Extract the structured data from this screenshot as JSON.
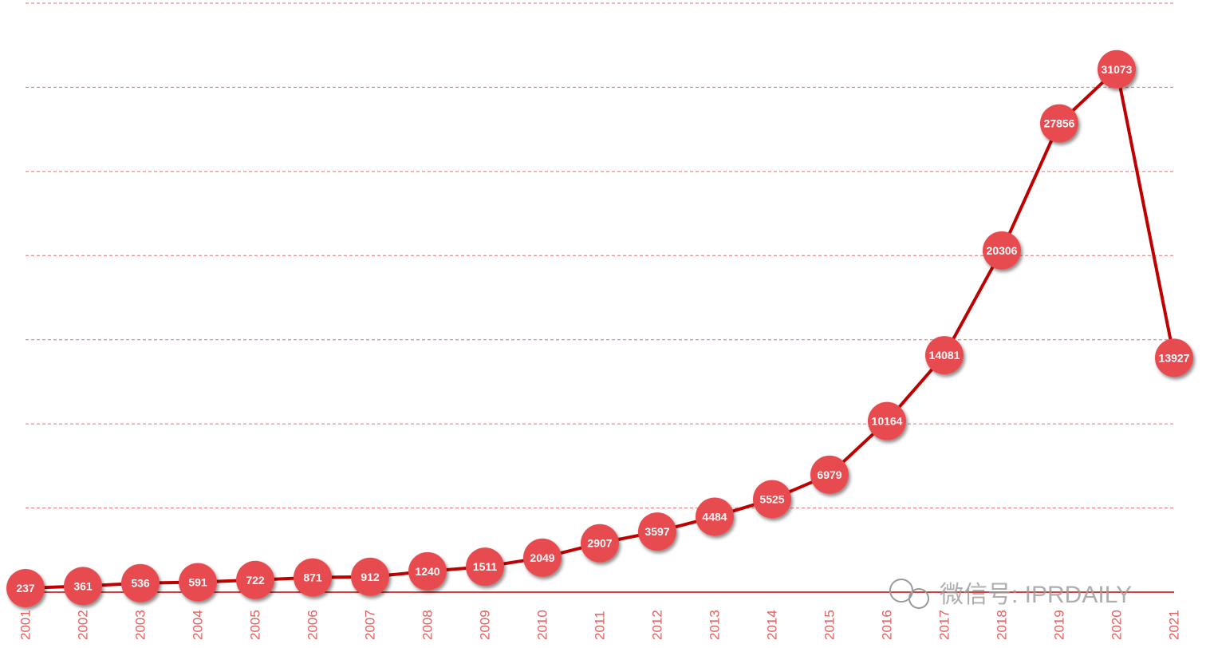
{
  "chart_data": {
    "type": "line",
    "categories": [
      "2001",
      "2002",
      "2003",
      "2004",
      "2005",
      "2006",
      "2007",
      "2008",
      "2009",
      "2010",
      "2011",
      "2012",
      "2013",
      "2014",
      "2015",
      "2016",
      "2017",
      "2018",
      "2019",
      "2020",
      "2021"
    ],
    "values": [
      237,
      361,
      536,
      591,
      722,
      871,
      912,
      1240,
      1511,
      2049,
      2907,
      3597,
      4484,
      5525,
      6979,
      10164,
      14081,
      20306,
      27856,
      31073,
      13927
    ],
    "color": "#c00000",
    "marker_color": "#e84c50",
    "ylim": [
      0,
      35000
    ],
    "yticks": [
      0,
      5000,
      10000,
      15000,
      20000,
      25000,
      30000,
      35000
    ],
    "grid": true,
    "watermark": "微信号: IPRDAILY"
  }
}
